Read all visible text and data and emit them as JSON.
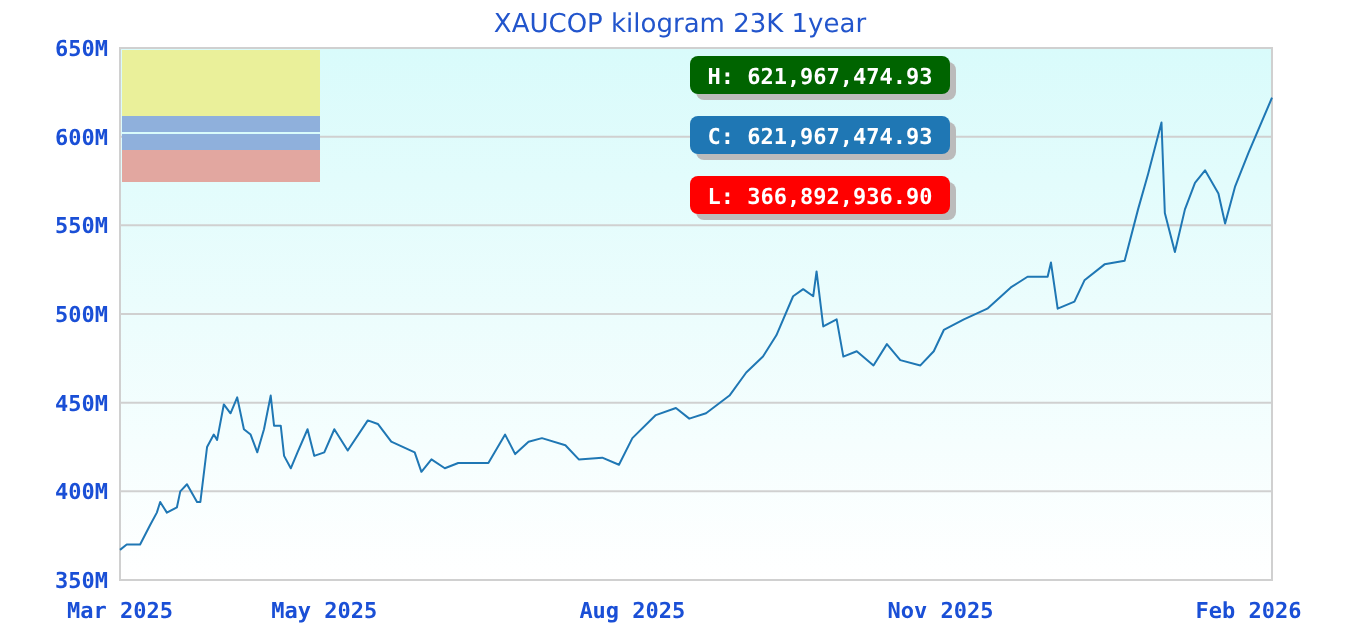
{
  "chart_data": {
    "type": "line",
    "title": "XAUCOP kilogram 23K 1year",
    "x": [
      "2025-03-01",
      "2025-03-03",
      "2025-03-07",
      "2025-03-10",
      "2025-03-12",
      "2025-03-13",
      "2025-03-15",
      "2025-03-18",
      "2025-03-19",
      "2025-03-21",
      "2025-03-24",
      "2025-03-25",
      "2025-03-27",
      "2025-03-29",
      "2025-03-30",
      "2025-04-01",
      "2025-04-03",
      "2025-04-05",
      "2025-04-07",
      "2025-04-09",
      "2025-04-11",
      "2025-04-13",
      "2025-04-15",
      "2025-04-16",
      "2025-04-18",
      "2025-04-19",
      "2025-04-21",
      "2025-04-23",
      "2025-04-26",
      "2025-04-28",
      "2025-05-01",
      "2025-05-04",
      "2025-05-08",
      "2025-05-14",
      "2025-05-17",
      "2025-05-21",
      "2025-05-28",
      "2025-05-30",
      "2025-06-02",
      "2025-06-06",
      "2025-06-10",
      "2025-06-19",
      "2025-06-24",
      "2025-06-27",
      "2025-07-01",
      "2025-07-05",
      "2025-07-12",
      "2025-07-16",
      "2025-07-23",
      "2025-07-28",
      "2025-08-01",
      "2025-08-08",
      "2025-08-14",
      "2025-08-18",
      "2025-08-23",
      "2025-08-30",
      "2025-09-04",
      "2025-09-09",
      "2025-09-13",
      "2025-09-18",
      "2025-09-21",
      "2025-09-24",
      "2025-09-25",
      "2025-09-27",
      "2025-10-01",
      "2025-10-03",
      "2025-10-07",
      "2025-10-12",
      "2025-10-16",
      "2025-10-20",
      "2025-10-26",
      "2025-10-30",
      "2025-11-02",
      "2025-11-08",
      "2025-11-15",
      "2025-11-22",
      "2025-11-27",
      "2025-12-03",
      "2025-12-04",
      "2025-12-06",
      "2025-12-11",
      "2025-12-14",
      "2025-12-20",
      "2025-12-26",
      "2025-12-30",
      "2026-01-02",
      "2026-01-06",
      "2026-01-07",
      "2026-01-10",
      "2026-01-13",
      "2026-01-16",
      "2026-01-19",
      "2026-01-23",
      "2026-01-25",
      "2026-01-28",
      "2026-02-01",
      "2026-02-08"
    ],
    "series": [
      {
        "color": "#1f77b4",
        "values": [
          367,
          370,
          370,
          381,
          388,
          394,
          388,
          391,
          400,
          404,
          394,
          394,
          425,
          432,
          429,
          449,
          444,
          453,
          435,
          432,
          422,
          435,
          454,
          437,
          437,
          420,
          413,
          422,
          435,
          420,
          422,
          435,
          423,
          440,
          438,
          428,
          422,
          411,
          418,
          413,
          416,
          416,
          432,
          421,
          428,
          430,
          426,
          418,
          419,
          415,
          430,
          443,
          447,
          441,
          444,
          454,
          467,
          476,
          488,
          510,
          514,
          510,
          524,
          493,
          497,
          476,
          479,
          471,
          483,
          474,
          471,
          479,
          491,
          497,
          503,
          515,
          521,
          521,
          529,
          503,
          507,
          519,
          528,
          530,
          559,
          579,
          608,
          557,
          535,
          559,
          574,
          581,
          568,
          551,
          572,
          591,
          622
        ]
      }
    ],
    "xlim": [
      "2025-03-01",
      "2026-02-08"
    ],
    "xticks": [
      {
        "value": "2025-03-01",
        "label": "Mar 2025"
      },
      {
        "value": "2025-05-01",
        "label": "May 2025"
      },
      {
        "value": "2025-08-01",
        "label": "Aug 2025"
      },
      {
        "value": "2025-11-01",
        "label": "Nov 2025"
      },
      {
        "value": "2026-02-01",
        "label": "Feb 2026"
      }
    ],
    "ylim": [
      350,
      650
    ],
    "yticks": [
      {
        "value": 350,
        "label": "350M"
      },
      {
        "value": 400,
        "label": "400M"
      },
      {
        "value": 450,
        "label": "450M"
      },
      {
        "value": 500,
        "label": "500M"
      },
      {
        "value": 550,
        "label": "550M"
      },
      {
        "value": 600,
        "label": "600M"
      },
      {
        "value": 650,
        "label": "650M"
      }
    ],
    "grid": "y",
    "annotations": [
      "H: 621,967,474.93",
      "C: 621,967,474.93",
      "L: 366,892,936.90"
    ]
  }
}
